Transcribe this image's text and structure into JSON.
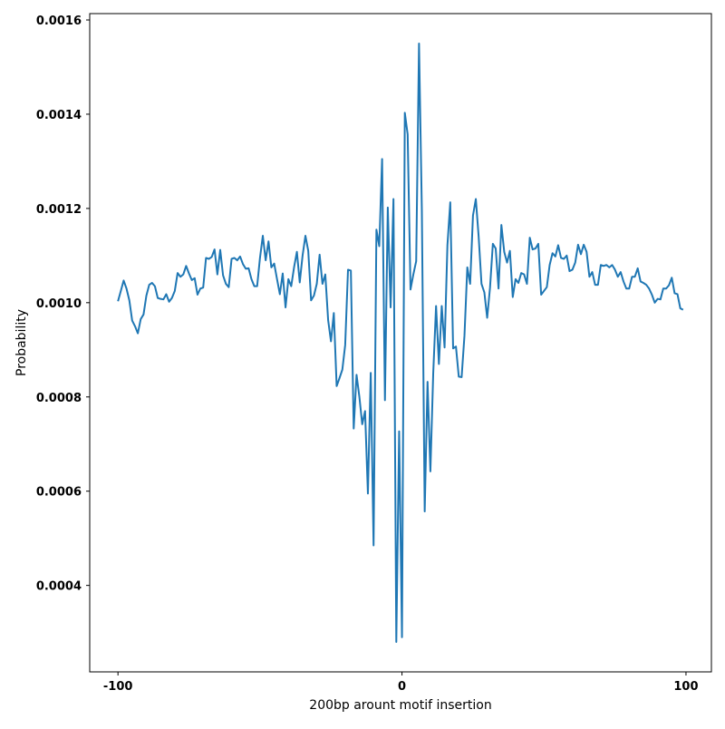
{
  "chart_data": {
    "type": "line",
    "xlabel": "200bp arount motif insertion",
    "ylabel": "Probability",
    "color": "#1f77b4",
    "grid": false,
    "xlim": [
      -109.95,
      108.95
    ],
    "ylim": [
      0.0002165,
      0.0016135
    ],
    "xticks": [
      -100,
      0,
      100
    ],
    "yticks": [
      0.0004,
      0.0006,
      0.0008,
      {
        "value": 0.001,
        "label": "0.0010"
      },
      0.0012,
      0.0014,
      0.0016
    ],
    "x": [
      -100,
      -99,
      -98,
      -97,
      -96,
      -95,
      -94,
      -93,
      -92,
      -91,
      -90,
      -89,
      -88,
      -87,
      -86,
      -85,
      -84,
      -83,
      -82,
      -81,
      -80,
      -79,
      -78,
      -77,
      -76,
      -75,
      -74,
      -73,
      -72,
      -71,
      -70,
      -69,
      -68,
      -67,
      -66,
      -65,
      -64,
      -63,
      -62,
      -61,
      -60,
      -59,
      -58,
      -57,
      -56,
      -55,
      -54,
      -53,
      -52,
      -51,
      -50,
      -49,
      -48,
      -47,
      -46,
      -45,
      -44,
      -43,
      -42,
      -41,
      -40,
      -39,
      -38,
      -37,
      -36,
      -35,
      -34,
      -33,
      -32,
      -31,
      -30,
      -29,
      -28,
      -27,
      -26,
      -25,
      -24,
      -23,
      -22,
      -21,
      -20,
      -19,
      -18,
      -17,
      -16,
      -15,
      -14,
      -13,
      -12,
      -11,
      -10,
      -9,
      -8,
      -7,
      -6,
      -5,
      -4,
      -3,
      -2,
      -1,
      0,
      1,
      2,
      3,
      4,
      5,
      6,
      7,
      8,
      9,
      10,
      11,
      12,
      13,
      14,
      15,
      16,
      17,
      18,
      19,
      20,
      21,
      22,
      23,
      24,
      25,
      26,
      27,
      28,
      29,
      30,
      31,
      32,
      33,
      34,
      35,
      36,
      37,
      38,
      39,
      40,
      41,
      42,
      43,
      44,
      45,
      46,
      47,
      48,
      49,
      50,
      51,
      52,
      53,
      54,
      55,
      56,
      57,
      58,
      59,
      60,
      61,
      62,
      63,
      64,
      65,
      66,
      67,
      68,
      69,
      70,
      71,
      72,
      73,
      74,
      75,
      76,
      77,
      78,
      79,
      80,
      81,
      82,
      83,
      84,
      85,
      86,
      87,
      88,
      89,
      90,
      91,
      92,
      93,
      94,
      95,
      96,
      97,
      98,
      99
    ],
    "values": [
      0.001003,
      0.001025,
      0.001047,
      0.00103,
      0.001005,
      0.000962,
      0.00095,
      0.000935,
      0.000965,
      0.000975,
      0.001015,
      0.001038,
      0.001042,
      0.001035,
      0.00101,
      0.001008,
      0.001007,
      0.001018,
      0.001002,
      0.00101,
      0.001025,
      0.001063,
      0.001055,
      0.00106,
      0.001078,
      0.001062,
      0.001048,
      0.001052,
      0.001017,
      0.00103,
      0.001032,
      0.001095,
      0.001093,
      0.001097,
      0.001113,
      0.00106,
      0.001112,
      0.001058,
      0.00104,
      0.001033,
      0.001093,
      0.001095,
      0.00109,
      0.001098,
      0.001082,
      0.001072,
      0.001073,
      0.00105,
      0.001035,
      0.001035,
      0.001095,
      0.001142,
      0.00109,
      0.00113,
      0.001075,
      0.001083,
      0.00105,
      0.001018,
      0.001062,
      0.00099,
      0.00105,
      0.001035,
      0.001075,
      0.001108,
      0.001043,
      0.0011,
      0.001142,
      0.00111,
      0.001005,
      0.001015,
      0.00104,
      0.001102,
      0.00104,
      0.00106,
      0.000963,
      0.000918,
      0.000978,
      0.000823,
      0.00084,
      0.000858,
      0.00091,
      0.00107,
      0.001068,
      0.000733,
      0.000847,
      0.0008,
      0.000742,
      0.00077,
      0.000595,
      0.000851,
      0.000485,
      0.001155,
      0.00112,
      0.001305,
      0.000793,
      0.001202,
      0.00099,
      0.00122,
      0.00028,
      0.000727,
      0.00029,
      0.001403,
      0.001357,
      0.001028,
      0.00106,
      0.001088,
      0.00155,
      0.001195,
      0.000557,
      0.000832,
      0.000642,
      0.00085,
      0.000993,
      0.00087,
      0.000993,
      0.000905,
      0.001122,
      0.001213,
      0.000903,
      0.000907,
      0.000843,
      0.000842,
      0.00093,
      0.001075,
      0.00104,
      0.001185,
      0.00122,
      0.00114,
      0.00104,
      0.001022,
      0.000968,
      0.001032,
      0.001125,
      0.001115,
      0.00103,
      0.001165,
      0.001108,
      0.001085,
      0.00111,
      0.001012,
      0.00105,
      0.001042,
      0.001063,
      0.00106,
      0.00104,
      0.001138,
      0.001113,
      0.001115,
      0.001125,
      0.001017,
      0.001025,
      0.001033,
      0.00108,
      0.001105,
      0.001098,
      0.001122,
      0.001095,
      0.001093,
      0.0011,
      0.001067,
      0.00107,
      0.001085,
      0.001123,
      0.001103,
      0.001123,
      0.001108,
      0.001055,
      0.001065,
      0.001038,
      0.001038,
      0.00108,
      0.001078,
      0.00108,
      0.001075,
      0.00108,
      0.00107,
      0.001055,
      0.001065,
      0.001045,
      0.00103,
      0.00103,
      0.001055,
      0.001055,
      0.001073,
      0.001045,
      0.001042,
      0.001038,
      0.00103,
      0.001017,
      0.001,
      0.001008,
      0.001007,
      0.00103,
      0.00103,
      0.001037,
      0.001053,
      0.00102,
      0.001018,
      0.000988,
      0.000985
    ]
  }
}
